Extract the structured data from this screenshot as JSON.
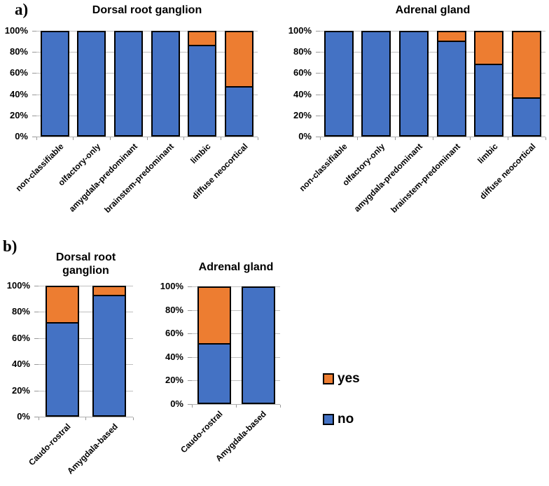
{
  "panels": {
    "a": "a)",
    "b": "b)"
  },
  "legend": {
    "items": [
      {
        "label": "yes",
        "color": "#ED7D31"
      },
      {
        "label": "no",
        "color": "#4472C4"
      }
    ]
  },
  "colors": {
    "yes_orange": "#ED7D31",
    "no_blue": "#4472C4",
    "bar_border": "#000000",
    "gridline": "#BFBFBF"
  },
  "chart_data": [
    {
      "id": "panel-a-dorsal-root-ganglion",
      "type": "bar",
      "stacked": true,
      "title": "Dorsal root ganglion",
      "categories": [
        "non-classifiable",
        "olfactory-only",
        "amygdala-predominant",
        "brainstem-predominant",
        "limbic",
        "diffuse neocortical"
      ],
      "series": [
        {
          "name": "yes",
          "color": "#ED7D31",
          "values": [
            0,
            0,
            0,
            0,
            13,
            52
          ]
        },
        {
          "name": "no",
          "color": "#4472C4",
          "values": [
            100,
            100,
            100,
            100,
            87,
            48
          ]
        }
      ],
      "yticks": [
        "100%",
        "80%",
        "60%",
        "40%",
        "20%",
        "0%"
      ],
      "ylim": [
        0,
        100
      ],
      "grid": true,
      "legend_position": "none"
    },
    {
      "id": "panel-a-adrenal-gland",
      "type": "bar",
      "stacked": true,
      "title": "Adrenal gland",
      "categories": [
        "non-classifiable",
        "olfactory-only",
        "amygdala-predominant",
        "brainstem-predominant",
        "limbic",
        "diffuse neocortical"
      ],
      "series": [
        {
          "name": "yes",
          "color": "#ED7D31",
          "values": [
            0,
            0,
            0,
            9,
            31,
            63
          ]
        },
        {
          "name": "no",
          "color": "#4472C4",
          "values": [
            100,
            100,
            100,
            91,
            69,
            37
          ]
        }
      ],
      "yticks": [
        "100%",
        "80%",
        "60%",
        "40%",
        "20%",
        "0%"
      ],
      "ylim": [
        0,
        100
      ],
      "grid": true,
      "legend_position": "none"
    },
    {
      "id": "panel-b-dorsal-root-ganglion",
      "type": "bar",
      "stacked": true,
      "title": "Dorsal root ganglion",
      "categories": [
        "Caudo-rostral",
        "Amygdala-based"
      ],
      "series": [
        {
          "name": "yes",
          "color": "#ED7D31",
          "values": [
            28,
            7
          ]
        },
        {
          "name": "no",
          "color": "#4472C4",
          "values": [
            72,
            93
          ]
        }
      ],
      "yticks": [
        "100%",
        "80%",
        "60%",
        "40%",
        "20%",
        "0%"
      ],
      "ylim": [
        0,
        100
      ],
      "grid": true,
      "legend_position": "none"
    },
    {
      "id": "panel-b-adrenal-gland",
      "type": "bar",
      "stacked": true,
      "title": "Adrenal gland",
      "categories": [
        "Caudo-rostral",
        "Amygdala-based"
      ],
      "series": [
        {
          "name": "yes",
          "color": "#ED7D31",
          "values": [
            48,
            0
          ]
        },
        {
          "name": "no",
          "color": "#4472C4",
          "values": [
            52,
            100
          ]
        }
      ],
      "yticks": [
        "100%",
        "80%",
        "60%",
        "40%",
        "20%",
        "0%"
      ],
      "ylim": [
        0,
        100
      ],
      "grid": true,
      "legend_position": "right-of-panel-b"
    }
  ]
}
